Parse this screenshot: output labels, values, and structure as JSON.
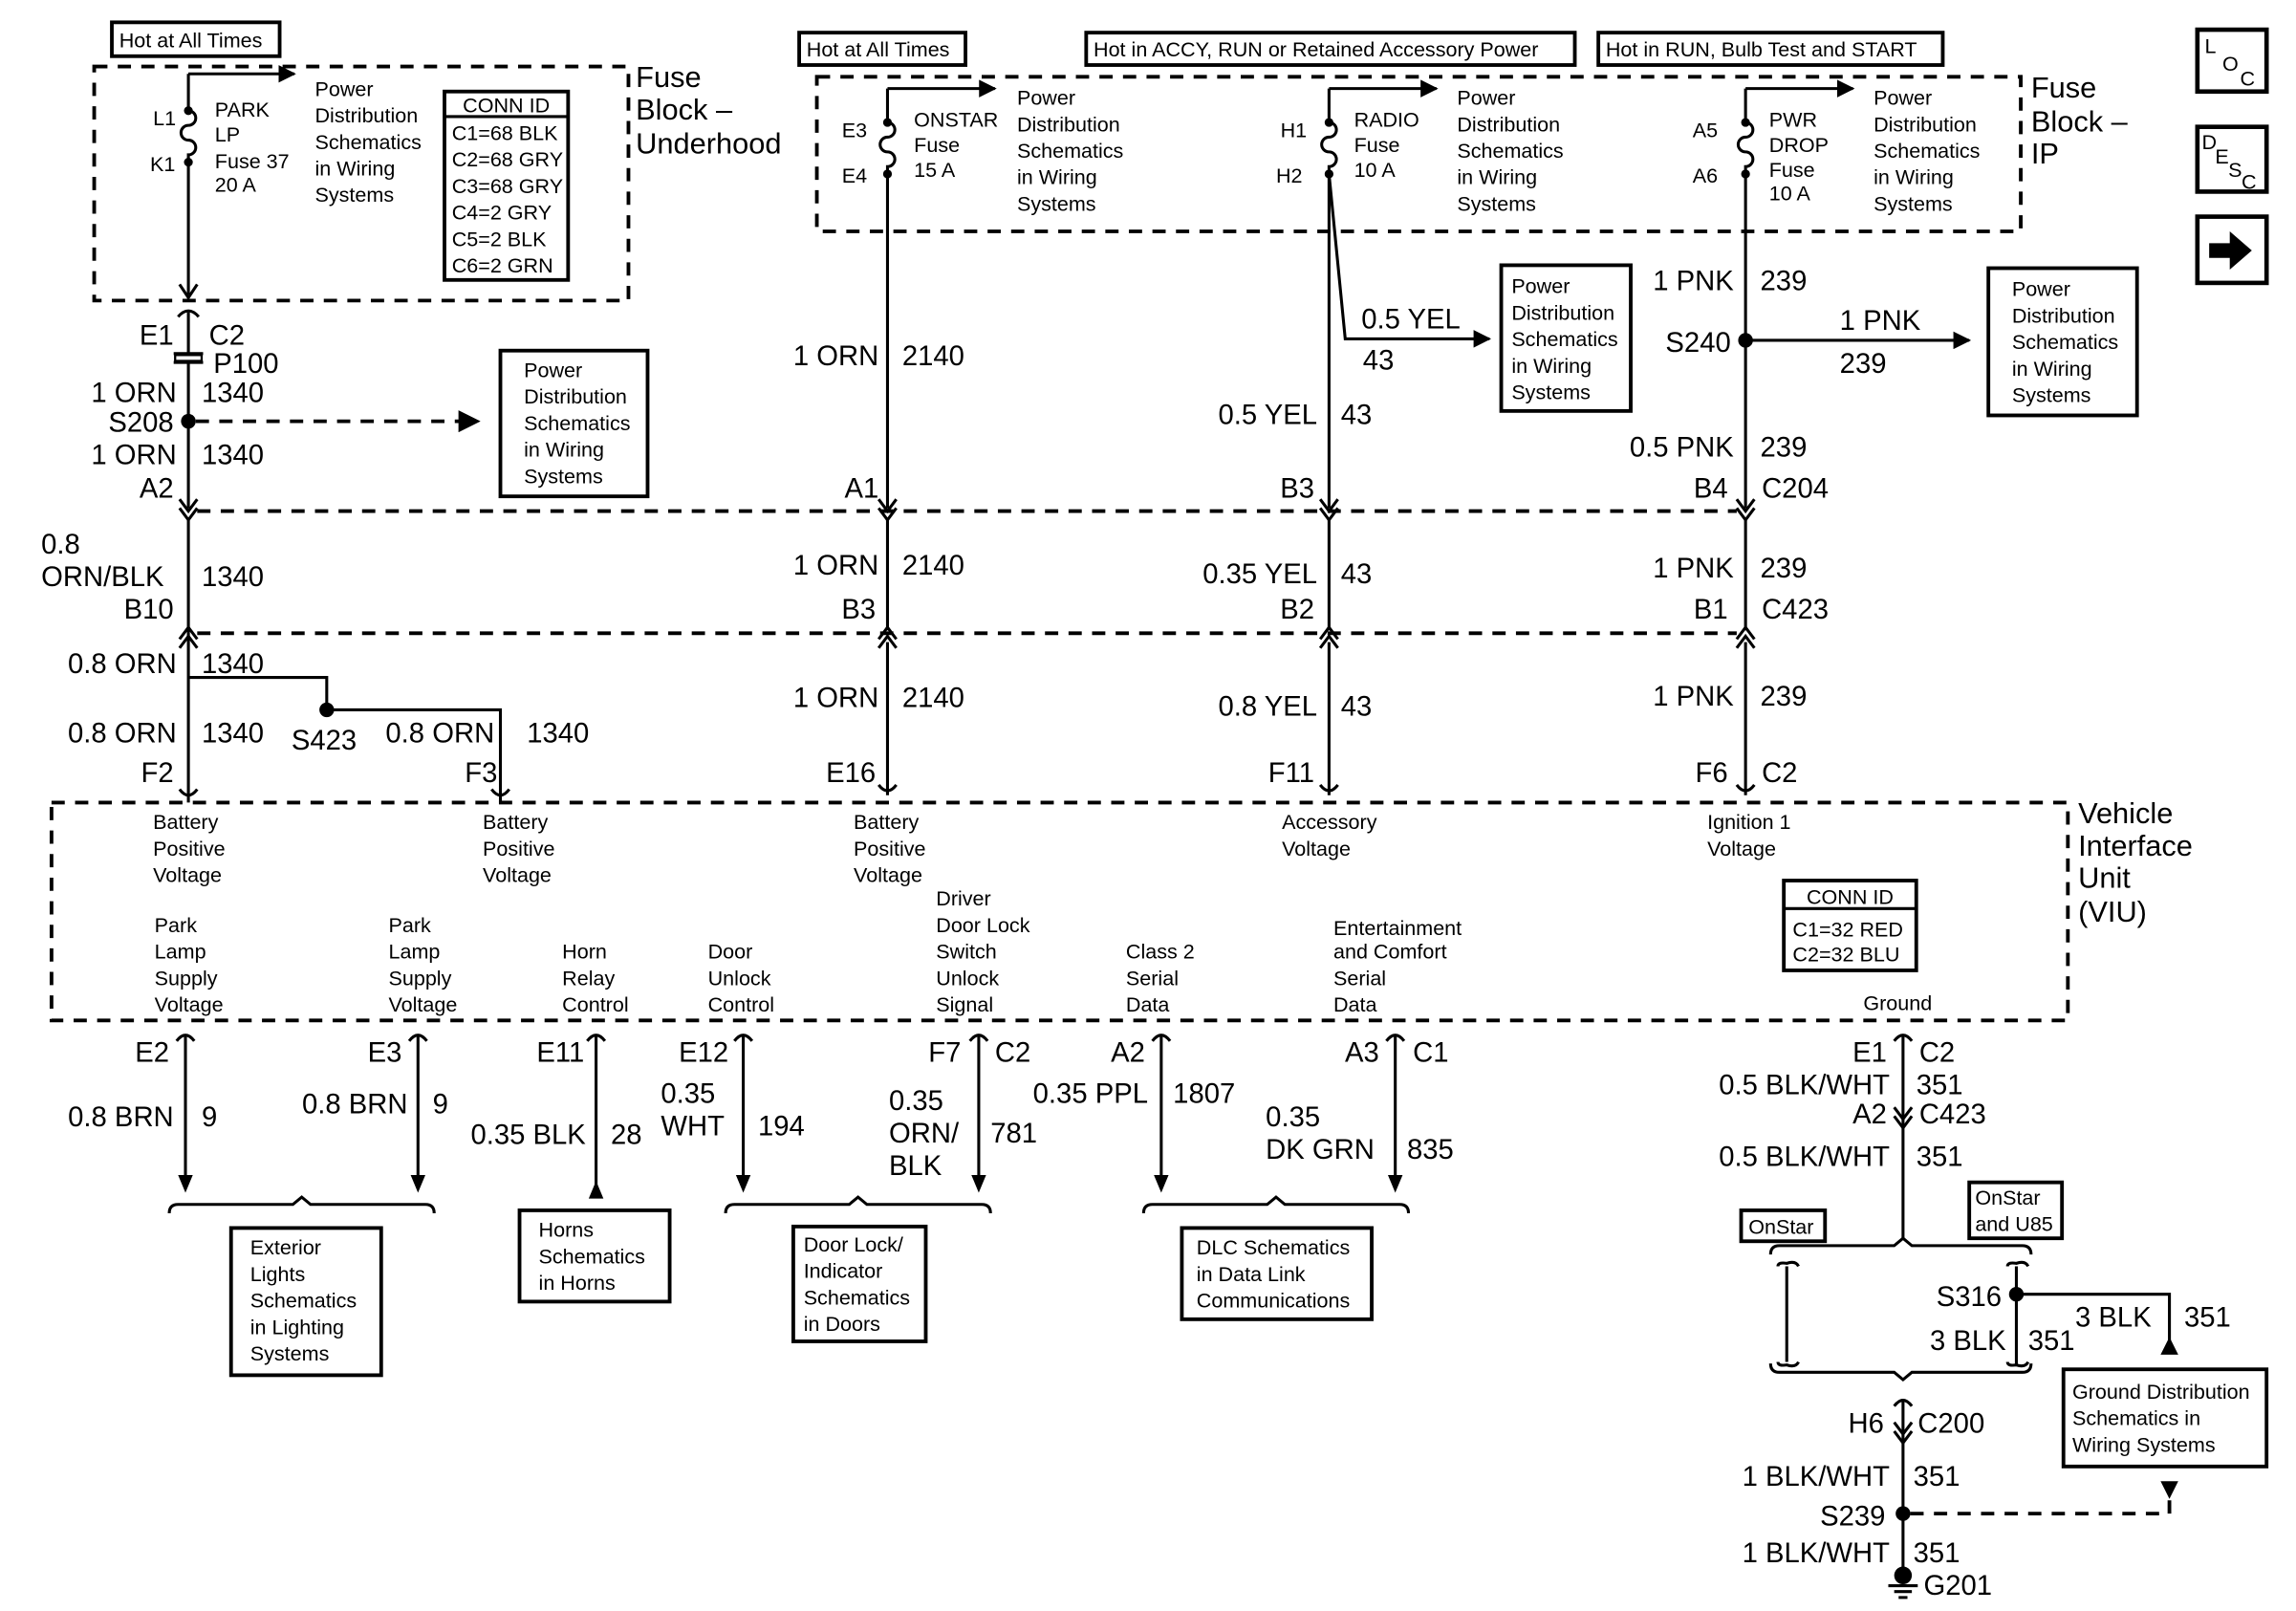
{
  "power_dist_ref": [
    "Power",
    "Distribution",
    "Schematics",
    "in Wiring",
    "Systems"
  ],
  "nav_icons": {
    "loc": [
      "L",
      "O",
      "C"
    ],
    "desc": [
      "D",
      "E",
      "S",
      "C"
    ],
    "next": "arrow-right-icon"
  },
  "underhood": {
    "hot_label": "Hot at All Times",
    "block_name": [
      "Fuse",
      "Block –",
      "Underhood"
    ],
    "pin_in": "L1",
    "pin_out": "K1",
    "fuse": [
      "PARK",
      "LP",
      "Fuse 37",
      "20 A"
    ],
    "conn_id": {
      "title": "CONN ID",
      "rows": [
        "C1=68 BLK",
        "C2=68 GRY",
        "C3=68 GRY",
        "C4=2 GRY",
        "C5=2 BLK",
        "C6=2 GRN"
      ]
    }
  },
  "ip_block": {
    "block_name": [
      "Fuse",
      "Block –",
      "IP"
    ],
    "onstar": {
      "hot_label": "Hot at All Times",
      "pin_in": "E3",
      "pin_out": "E4",
      "fuse": [
        "ONSTAR",
        "Fuse",
        "15 A"
      ]
    },
    "radio": {
      "hot_label": "Hot in ACCY, RUN or Retained Accessory Power",
      "pin_in": "H1",
      "pin_out": "H2",
      "fuse": [
        "RADIO",
        "Fuse",
        "10 A"
      ]
    },
    "pwr_drop": {
      "hot_label": "Hot in RUN, Bulb Test and START",
      "pin_in": "A5",
      "pin_out": "A6",
      "fuse": [
        "PWR",
        "DROP",
        "Fuse",
        "10 A"
      ]
    }
  },
  "circuit_1340": {
    "e1": "E1",
    "c2": "C2",
    "p100": "P100",
    "w1": "1 ORN",
    "n1": "1340",
    "s208": "S208",
    "w2": "1 ORN",
    "n2": "1340",
    "a2": "A2",
    "w3a": "0.8",
    "w3b": "ORN/BLK",
    "n3": "1340",
    "b10": "B10",
    "w4": "0.8 ORN",
    "n4": "1340",
    "s423": "S423",
    "w5": "0.8 ORN",
    "n5": "1340",
    "w6": "0.8 ORN",
    "n6": "1340",
    "f2": "F2",
    "f3": "F3"
  },
  "circuit_2140": {
    "w1": "1 ORN",
    "n1": "2140",
    "a1": "A1",
    "w2": "1 ORN",
    "n2": "2140",
    "b3": "B3",
    "w3": "1 ORN",
    "n3": "2140",
    "e16": "E16"
  },
  "circuit_43": {
    "wb": "0.5 YEL",
    "nb": "43",
    "w1": "0.5 YEL",
    "n1": "43",
    "b3": "B3",
    "w2": "0.35 YEL",
    "n2": "43",
    "b2": "B2",
    "w3": "0.8 YEL",
    "n3": "43",
    "f11": "F11"
  },
  "circuit_239": {
    "w0": "1 PNK",
    "n0": "239",
    "s240": "S240",
    "wb": "1 PNK",
    "nb": "239",
    "w1": "0.5 PNK",
    "n1": "239",
    "b4": "B4",
    "c204": "C204",
    "w2": "1 PNK",
    "n2": "239",
    "b1": "B1",
    "c423": "C423",
    "w3": "1 PNK",
    "n3": "239",
    "f6": "F6",
    "c2": "C2"
  },
  "viu": {
    "name": [
      "Vehicle",
      "Interface",
      "Unit",
      "(VIU)"
    ],
    "batt1": [
      "Battery",
      "Positive",
      "Voltage"
    ],
    "batt2": [
      "Battery",
      "Positive",
      "Voltage"
    ],
    "batt3": [
      "Battery",
      "Positive",
      "Voltage"
    ],
    "acc": [
      "Accessory",
      "Voltage"
    ],
    "ign": [
      "Ignition 1",
      "Voltage"
    ],
    "park1": [
      "Park",
      "Lamp",
      "Supply",
      "Voltage"
    ],
    "park2": [
      "Park",
      "Lamp",
      "Supply",
      "Voltage"
    ],
    "horn": [
      "Horn",
      "Relay",
      "Control"
    ],
    "door": [
      "Door",
      "Unlock",
      "Control"
    ],
    "driver": [
      "Driver",
      "Door Lock",
      "Switch",
      "Unlock",
      "Signal"
    ],
    "class2": [
      "Class 2",
      "Serial",
      "Data"
    ],
    "ent": [
      "Entertainment",
      "and Comfort",
      "Serial",
      "Data"
    ],
    "ground": "Ground",
    "conn_id": {
      "title": "CONN ID",
      "rows": [
        "C1=32 RED",
        "C2=32 BLU"
      ]
    }
  },
  "outputs": {
    "e2": {
      "pin": "E2",
      "wire": "0.8 BRN",
      "num": "9"
    },
    "e3": {
      "pin": "E3",
      "wire": "0.8 BRN",
      "num": "9"
    },
    "e11": {
      "pin": "E11",
      "wire": "0.35 BLK",
      "num": "28"
    },
    "e12": {
      "pin": "E12",
      "wire": [
        "0.35",
        "WHT"
      ],
      "num": "194"
    },
    "f7": {
      "pin": "F7",
      "conn": "C2",
      "wire": [
        "0.35",
        "ORN/",
        "BLK"
      ],
      "num": "781"
    },
    "a2": {
      "pin": "A2",
      "wire": "0.35 PPL",
      "num": "1807"
    },
    "a3": {
      "pin": "A3",
      "conn": "C1",
      "wire": [
        "0.35",
        "DK GRN"
      ],
      "num": "835"
    },
    "refs": {
      "lights": [
        "Exterior",
        "Lights",
        "Schematics",
        "in Lighting",
        "Systems"
      ],
      "horns": [
        "Horns",
        "Schematics",
        "in Horns"
      ],
      "doors": [
        "Door Lock/",
        "Indicator",
        "Schematics",
        "in Doors"
      ],
      "dlc": [
        "DLC Schematics",
        "in Data Link",
        "Communications"
      ]
    }
  },
  "ground": {
    "e1": "E1",
    "c2": "C2",
    "w1": "0.5 BLK/WHT",
    "n1": "351",
    "a2": "A2",
    "c423": "C423",
    "w2": "0.5 BLK/WHT",
    "n2": "351",
    "opt_onstar": "OnStar",
    "opt_onstar_u85": [
      "OnStar",
      "and U85"
    ],
    "s316": "S316",
    "w3": "3 BLK",
    "n3": "351",
    "w4": "3 BLK",
    "n4": "351",
    "ref": [
      "Ground Distribution",
      "Schematics in",
      "Wiring Systems"
    ],
    "h6": "H6",
    "c200": "C200",
    "w5": "1 BLK/WHT",
    "n5": "351",
    "s239": "S239",
    "w6": "1 BLK/WHT",
    "n6": "351",
    "g201": "G201"
  }
}
